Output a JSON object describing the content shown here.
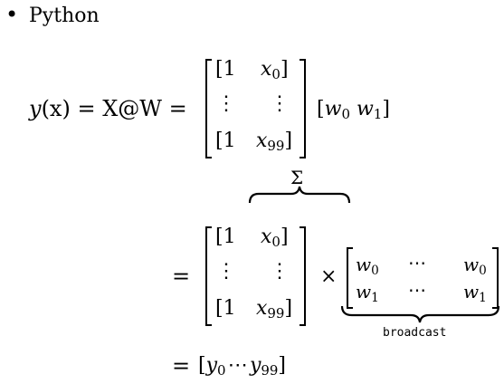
{
  "bullet": {
    "label": "Python"
  },
  "eq1": {
    "lhs": "y",
    "lhs_arg": "(x) = X@W =",
    "matrix": {
      "r1c1": "[1",
      "r1c2_var": "x",
      "r1c2_sub": "0",
      "r1c2_close": "]",
      "r2c1": "⋮",
      "r2c2": "⋮",
      "r3c1": "[1",
      "r3c2_var": "x",
      "r3c2_sub": "99",
      "r3c2_close": "]"
    },
    "vector": {
      "open": "[",
      "w0_var": "w",
      "w0_sub": "0",
      "w1_var": "w",
      "w1_sub": "1",
      "close": "]"
    }
  },
  "sum": {
    "symbol": "Σ"
  },
  "eq2": {
    "equals": "=",
    "matrix": {
      "r1c1": "[1",
      "r1c2_var": "x",
      "r1c2_sub": "0",
      "r1c2_close": "]",
      "r2c1": "⋮",
      "r2c2": "⋮",
      "r3c1": "[1",
      "r3c2_var": "x",
      "r3c2_sub": "99",
      "r3c2_close": "]"
    },
    "times": "×",
    "w_matrix": {
      "r1c1_var": "w",
      "r1c1_sub": "0",
      "r1c2": "⋯",
      "r1c3_var": "w",
      "r1c3_sub": "0",
      "r2c1_var": "w",
      "r2c1_sub": "1",
      "r2c2": "⋯",
      "r2c3_var": "w",
      "r2c3_sub": "1"
    },
    "brace_label": "broadcast"
  },
  "eq3": {
    "equals": "=",
    "open": "[",
    "y0_var": "y",
    "y0_sub": "0",
    "dots": "⋯",
    "y99_var": "y",
    "y99_sub": "99",
    "close": "]"
  }
}
